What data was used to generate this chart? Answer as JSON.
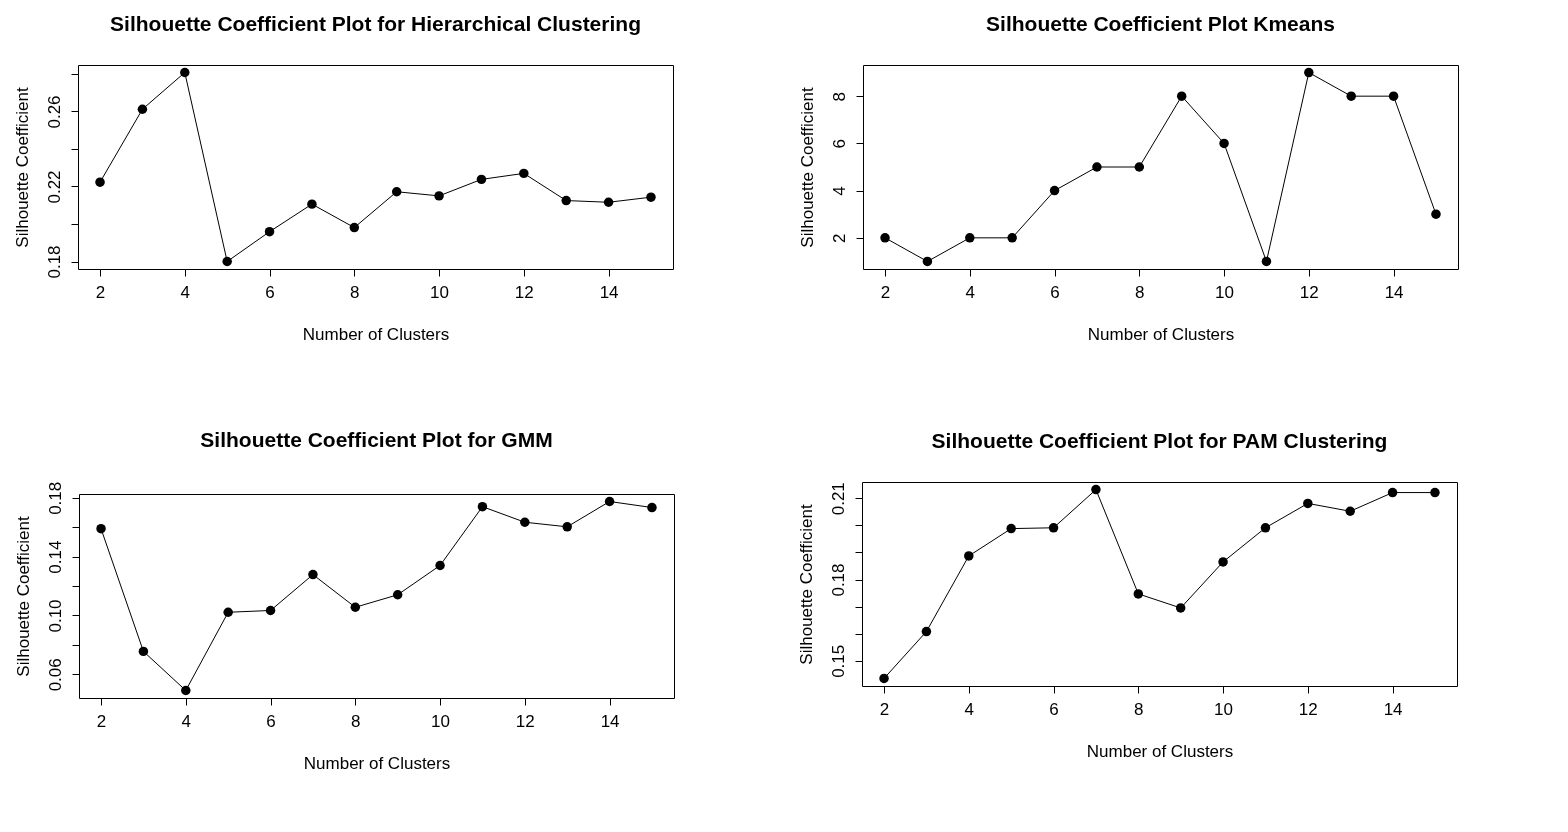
{
  "chart_data": [
    {
      "type": "line",
      "title": "Silhouette Coefficient Plot for Hierarchical Clustering",
      "xlabel": "Number of Clusters",
      "ylabel": "Silhouette Coefficient",
      "x": [
        2,
        3,
        4,
        5,
        6,
        7,
        8,
        9,
        10,
        11,
        12,
        13,
        14,
        15
      ],
      "series": [
        {
          "color": "#000000",
          "values": [
            0.2223,
            0.2612,
            0.2808,
            0.18,
            0.1959,
            0.2106,
            0.1981,
            0.2172,
            0.215,
            0.2238,
            0.227,
            0.2125,
            0.2116,
            0.2143
          ]
        }
      ],
      "xlim": [
        1.48,
        15.52
      ],
      "ylim": [
        0.176,
        0.2848
      ],
      "xticks": [
        2,
        4,
        6,
        8,
        10,
        12,
        14
      ],
      "yticks": [
        0.18,
        {
          "value": 0.2,
          "label": null
        },
        0.22,
        {
          "value": 0.24,
          "label": null
        },
        0.26,
        {
          "value": 0.28,
          "label": null
        }
      ],
      "marker": "circle",
      "grid": false
    },
    {
      "type": "line",
      "title": "Silhouette Coefficient Plot Kmeans",
      "xlabel": "Number of Clusters",
      "ylabel": "Silhouette Coefficient",
      "x": [
        2,
        3,
        4,
        5,
        6,
        7,
        8,
        9,
        10,
        11,
        12,
        13,
        14,
        15
      ],
      "series": [
        {
          "color": "#000000",
          "values": [
            2,
            1,
            2,
            2,
            4,
            5,
            5,
            8,
            6,
            1,
            9,
            8,
            8,
            3
          ]
        }
      ],
      "xlim": [
        1.48,
        15.52
      ],
      "ylim": [
        0.68,
        9.32
      ],
      "xticks": [
        2,
        4,
        6,
        8,
        10,
        12,
        14
      ],
      "yticks": [
        2,
        4,
        6,
        8
      ],
      "marker": "circle",
      "grid": false
    },
    {
      "type": "line",
      "title": "Silhouette Coefficient Plot for GMM",
      "xlabel": "Number of Clusters",
      "ylabel": "Silhouette Coefficient",
      "x": [
        2,
        3,
        4,
        5,
        6,
        7,
        8,
        9,
        10,
        11,
        12,
        13,
        14,
        15
      ],
      "series": [
        {
          "color": "#000000",
          "values": [
            0.159,
            0.0756,
            0.049,
            0.1022,
            0.1034,
            0.1278,
            0.1056,
            0.1141,
            0.134,
            0.174,
            0.1634,
            0.1603,
            0.1775,
            0.1734
          ]
        }
      ],
      "xlim": [
        1.48,
        15.52
      ],
      "ylim": [
        0.0439,
        0.1826
      ],
      "xticks": [
        2,
        4,
        6,
        8,
        10,
        12,
        14
      ],
      "yticks": [
        0.06,
        {
          "value": 0.08,
          "label": null
        },
        {
          "value": 0.1,
          "label": "0.10"
        },
        {
          "value": 0.12,
          "label": null
        },
        0.14,
        {
          "value": 0.16,
          "label": null
        },
        0.18
      ],
      "marker": "circle",
      "grid": false
    },
    {
      "type": "line",
      "title": "Silhouette Coefficient Plot for PAM Clustering",
      "xlabel": "Number of Clusters",
      "ylabel": "Silhouette Coefficient",
      "x": [
        2,
        3,
        4,
        5,
        6,
        7,
        8,
        9,
        10,
        11,
        12,
        13,
        14,
        15
      ],
      "series": [
        {
          "color": "#000000",
          "values": [
            0.1435,
            0.1608,
            0.1887,
            0.1988,
            0.1991,
            0.2132,
            0.1747,
            0.1695,
            0.1865,
            0.1991,
            0.2081,
            0.2052,
            0.2121,
            0.2121
          ]
        }
      ],
      "xlim": [
        1.48,
        15.52
      ],
      "ylim": [
        0.1407,
        0.216
      ],
      "xticks": [
        2,
        4,
        6,
        8,
        10,
        12,
        14
      ],
      "yticks": [
        0.15,
        {
          "value": 0.16,
          "label": null
        },
        {
          "value": 0.17,
          "label": null
        },
        0.18,
        {
          "value": 0.19,
          "label": null
        },
        {
          "value": 0.2,
          "label": null
        },
        0.21
      ],
      "marker": "circle",
      "grid": false
    }
  ]
}
